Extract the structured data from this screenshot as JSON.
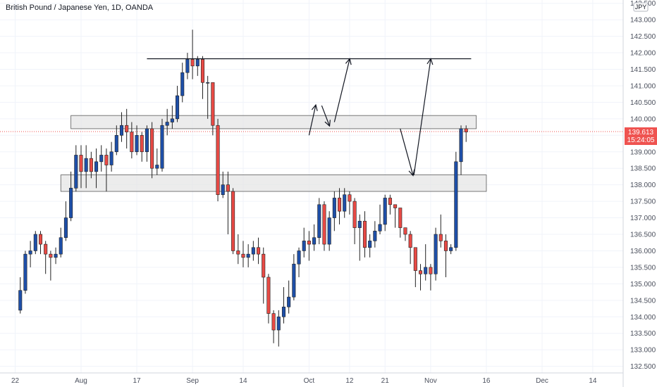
{
  "chart_data": {
    "type": "candlestick",
    "title": "British Pound / Japanese Yen, 1D, OANDA",
    "currency_label": "JPY",
    "y_ticks": [
      "132.500",
      "133.000",
      "133.500",
      "134.000",
      "134.500",
      "135.000",
      "135.500",
      "136.000",
      "136.500",
      "137.000",
      "137.500",
      "138.000",
      "138.500",
      "139.000",
      "139.500",
      "140.000",
      "140.500",
      "141.000",
      "141.500",
      "142.000",
      "142.500",
      "143.000",
      "143.500"
    ],
    "ylim": [
      132.3,
      143.6
    ],
    "x_ticks": [
      {
        "label": "22",
        "index": -1
      },
      {
        "label": "Aug",
        "index": 12
      },
      {
        "label": "17",
        "index": 23
      },
      {
        "label": "Sep",
        "index": 34
      },
      {
        "label": "14",
        "index": 44
      },
      {
        "label": "Oct",
        "index": 57
      },
      {
        "label": "12",
        "index": 65
      },
      {
        "label": "21",
        "index": 72
      },
      {
        "label": "Nov",
        "index": 81
      },
      {
        "label": "16",
        "index": 92
      },
      {
        "label": "Dec",
        "index": 103
      },
      {
        "label": "14",
        "index": 113
      }
    ],
    "x_index_range": [
      -4,
      119
    ],
    "current_price": {
      "value": "139.613",
      "countdown": "15:24:05",
      "price": 139.613
    },
    "grid": true,
    "colors": {
      "up": "#1e4fa8",
      "down": "#e84a45",
      "zone_fill": "#e6e6e6",
      "zone_stroke": "#5a5a5a",
      "line": "#131722",
      "badge": "#ef5350"
    },
    "candles": [
      [
        134.2,
        134.8,
        134.1,
        135.2
      ],
      [
        134.8,
        135.9,
        134.7,
        136.0
      ],
      [
        135.9,
        136.0,
        135.5,
        136.3
      ],
      [
        136.0,
        136.5,
        135.9,
        136.6
      ],
      [
        136.5,
        136.2,
        135.9,
        136.6
      ],
      [
        136.2,
        135.9,
        135.3,
        136.3
      ],
      [
        135.9,
        135.8,
        135.1,
        136.0
      ],
      [
        135.8,
        135.9,
        135.6,
        136.1
      ],
      [
        135.9,
        136.4,
        135.8,
        136.7
      ],
      [
        136.4,
        137.0,
        136.3,
        137.5
      ],
      [
        137.0,
        137.9,
        136.9,
        138.4
      ],
      [
        137.9,
        138.9,
        137.8,
        139.2
      ],
      [
        138.9,
        138.4,
        137.9,
        139.2
      ],
      [
        138.4,
        138.8,
        137.9,
        139.2
      ],
      [
        138.8,
        138.4,
        138.2,
        139.0
      ],
      [
        138.4,
        138.7,
        137.9,
        139.1
      ],
      [
        138.7,
        138.9,
        138.4,
        139.2
      ],
      [
        138.9,
        138.6,
        137.8,
        139.1
      ],
      [
        138.6,
        139.0,
        138.4,
        139.3
      ],
      [
        139.0,
        139.5,
        138.9,
        139.8
      ],
      [
        139.5,
        139.8,
        139.3,
        140.2
      ],
      [
        139.8,
        139.6,
        139.1,
        140.3
      ],
      [
        139.6,
        139.0,
        138.8,
        139.9
      ],
      [
        139.0,
        139.5,
        138.9,
        139.8
      ],
      [
        139.5,
        139.0,
        138.7,
        139.6
      ],
      [
        139.0,
        139.7,
        138.7,
        139.8
      ],
      [
        139.7,
        138.5,
        138.2,
        139.9
      ],
      [
        138.5,
        138.6,
        138.3,
        139.1
      ],
      [
        138.5,
        139.8,
        138.4,
        140.0
      ],
      [
        139.8,
        139.9,
        139.5,
        140.3
      ],
      [
        139.9,
        140.0,
        139.7,
        140.4
      ],
      [
        140.0,
        140.7,
        139.9,
        141.0
      ],
      [
        140.7,
        141.4,
        140.5,
        141.7
      ],
      [
        141.4,
        141.8,
        141.2,
        142.0
      ],
      [
        141.8,
        141.6,
        141.2,
        142.7
      ],
      [
        141.6,
        141.8,
        141.3,
        141.9
      ],
      [
        141.8,
        141.1,
        140.6,
        141.9
      ],
      [
        141.1,
        141.1,
        140.0,
        141.3
      ],
      [
        141.1,
        139.8,
        139.5,
        141.1
      ],
      [
        139.8,
        137.7,
        137.5,
        140.0
      ],
      [
        137.7,
        138.0,
        137.6,
        138.4
      ],
      [
        138.0,
        137.8,
        136.5,
        138.4
      ],
      [
        137.8,
        136.0,
        135.9,
        137.9
      ],
      [
        136.0,
        135.9,
        135.6,
        136.5
      ],
      [
        135.9,
        135.8,
        135.5,
        136.3
      ],
      [
        135.8,
        135.9,
        135.5,
        136.2
      ],
      [
        135.9,
        136.1,
        135.7,
        136.3
      ],
      [
        136.1,
        135.9,
        135.6,
        136.4
      ],
      [
        135.9,
        135.2,
        134.4,
        136.1
      ],
      [
        135.2,
        134.1,
        133.8,
        135.3
      ],
      [
        134.1,
        133.6,
        133.2,
        134.2
      ],
      [
        133.6,
        134.0,
        133.1,
        134.2
      ],
      [
        134.0,
        134.3,
        133.8,
        134.9
      ],
      [
        134.3,
        134.6,
        134.1,
        135.1
      ],
      [
        134.6,
        135.6,
        134.5,
        135.9
      ],
      [
        135.6,
        136.0,
        135.2,
        136.1
      ],
      [
        136.0,
        136.3,
        135.8,
        136.7
      ],
      [
        136.3,
        136.2,
        135.7,
        136.6
      ],
      [
        136.2,
        136.4,
        136.0,
        136.8
      ],
      [
        136.4,
        137.4,
        136.2,
        137.6
      ],
      [
        137.4,
        136.2,
        136.0,
        137.5
      ],
      [
        136.2,
        137.0,
        136.0,
        137.2
      ],
      [
        137.0,
        137.6,
        136.6,
        137.8
      ],
      [
        137.6,
        137.2,
        136.8,
        137.9
      ],
      [
        137.2,
        137.7,
        137.0,
        137.9
      ],
      [
        137.7,
        137.5,
        137.1,
        137.8
      ],
      [
        137.5,
        136.7,
        136.2,
        137.6
      ],
      [
        136.7,
        136.9,
        135.7,
        137.1
      ],
      [
        136.9,
        136.1,
        135.8,
        137.2
      ],
      [
        136.1,
        136.3,
        135.8,
        136.5
      ],
      [
        136.3,
        136.6,
        136.1,
        136.9
      ],
      [
        136.6,
        136.8,
        136.5,
        137.4
      ],
      [
        136.8,
        137.6,
        136.6,
        137.7
      ],
      [
        137.6,
        137.4,
        137.1,
        137.7
      ],
      [
        137.4,
        137.3,
        136.7,
        137.4
      ],
      [
        137.3,
        136.7,
        136.4,
        137.2
      ],
      [
        136.7,
        136.5,
        136.3,
        136.7
      ],
      [
        136.5,
        136.1,
        135.6,
        136.6
      ],
      [
        136.1,
        135.4,
        134.9,
        136.1
      ],
      [
        135.4,
        135.3,
        134.8,
        135.6
      ],
      [
        135.3,
        135.5,
        135.1,
        136.2
      ],
      [
        135.5,
        135.3,
        134.8,
        135.6
      ],
      [
        135.3,
        136.5,
        135.1,
        136.7
      ],
      [
        136.5,
        136.3,
        136.1,
        137.1
      ],
      [
        136.3,
        136.0,
        135.2,
        136.5
      ],
      [
        136.0,
        136.1,
        135.9,
        136.2
      ],
      [
        136.1,
        138.7,
        136.0,
        139.0
      ],
      [
        138.7,
        139.7,
        138.3,
        139.8
      ],
      [
        139.7,
        139.6,
        139.3,
        139.8
      ]
    ],
    "zones": [
      {
        "start": 10,
        "end": 90,
        "low": 139.7,
        "high": 140.1
      },
      {
        "start": 8,
        "end": 92,
        "low": 137.8,
        "high": 138.3
      }
    ],
    "resistance_line": {
      "start": 25,
      "end": 89,
      "price": 141.82
    },
    "projection_arrows": [
      [
        [
          57,
          139.5
        ],
        [
          58.3,
          140.4
        ]
      ],
      [
        [
          59.5,
          140.4
        ],
        [
          61,
          139.8
        ]
      ],
      [
        [
          62,
          139.9
        ],
        [
          65,
          141.8
        ]
      ],
      [
        [
          75,
          139.7
        ],
        [
          77.5,
          138.3
        ]
      ],
      [
        [
          77.7,
          138.3
        ],
        [
          81,
          141.8
        ]
      ]
    ]
  }
}
